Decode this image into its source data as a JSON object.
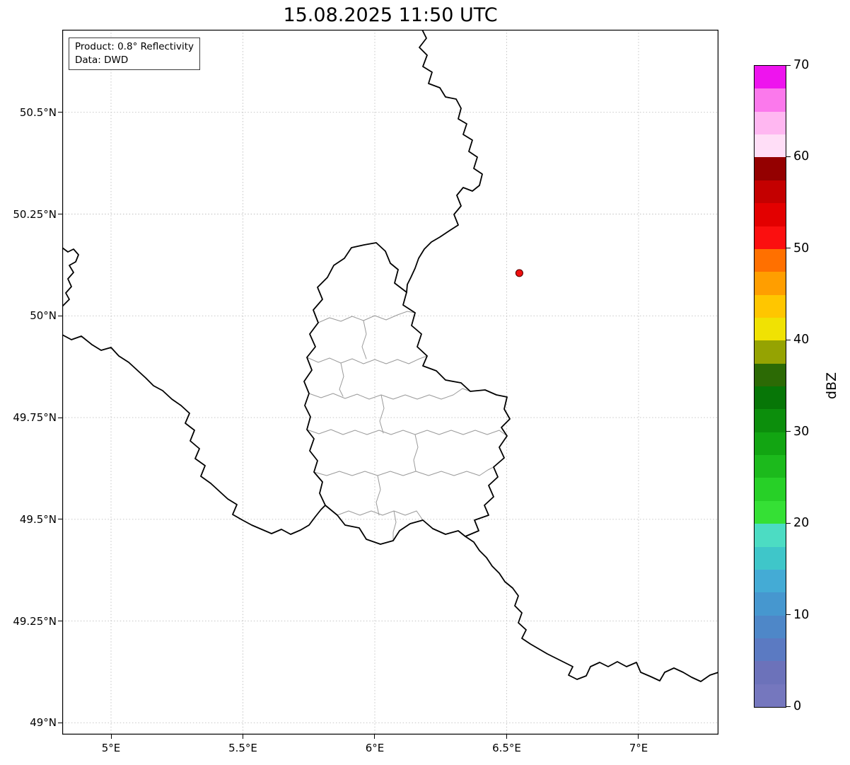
{
  "title": "15.08.2025 11:50 UTC",
  "info_box": {
    "product_line": "Product: 0.8° Reflectivity",
    "data_line": "Data: DWD"
  },
  "axes": {
    "x_ticks": [
      {
        "label": "5°E",
        "lon": 5.0
      },
      {
        "label": "5.5°E",
        "lon": 5.5
      },
      {
        "label": "6°E",
        "lon": 6.0
      },
      {
        "label": "6.5°E",
        "lon": 6.5
      },
      {
        "label": "7°E",
        "lon": 7.0
      }
    ],
    "y_ticks": [
      {
        "label": "49°N",
        "lat": 49.0
      },
      {
        "label": "49.25°N",
        "lat": 49.25
      },
      {
        "label": "49.5°N",
        "lat": 49.5
      },
      {
        "label": "49.75°N",
        "lat": 49.75
      },
      {
        "label": "50°N",
        "lat": 50.0
      },
      {
        "label": "50.25°N",
        "lat": 50.25
      },
      {
        "label": "50.5°N",
        "lat": 50.5
      }
    ]
  },
  "colorbar": {
    "label": "dBZ",
    "min": 0,
    "max": 70,
    "ticks": [
      0,
      10,
      20,
      30,
      40,
      50,
      60,
      70
    ],
    "segments": [
      {
        "from": 0,
        "to": 2.5,
        "color": "#7577be"
      },
      {
        "from": 2.5,
        "to": 5,
        "color": "#6c72ba"
      },
      {
        "from": 5,
        "to": 7.5,
        "color": "#5b7ac2"
      },
      {
        "from": 7.5,
        "to": 10,
        "color": "#4e87c8"
      },
      {
        "from": 10,
        "to": 12.5,
        "color": "#4697cf"
      },
      {
        "from": 12.5,
        "to": 15,
        "color": "#44abd5"
      },
      {
        "from": 15,
        "to": 17.5,
        "color": "#3fc6c9"
      },
      {
        "from": 17.5,
        "to": 20,
        "color": "#4cdcc3"
      },
      {
        "from": 20,
        "to": 22.5,
        "color": "#35e035"
      },
      {
        "from": 22.5,
        "to": 25,
        "color": "#27d027"
      },
      {
        "from": 25,
        "to": 27.5,
        "color": "#1cba1c"
      },
      {
        "from": 27.5,
        "to": 30,
        "color": "#12a512"
      },
      {
        "from": 30,
        "to": 32.5,
        "color": "#0c8e0c"
      },
      {
        "from": 32.5,
        "to": 35,
        "color": "#077607"
      },
      {
        "from": 35,
        "to": 37.5,
        "color": "#2c6a05"
      },
      {
        "from": 37.5,
        "to": 40,
        "color": "#95a302"
      },
      {
        "from": 40,
        "to": 42.5,
        "color": "#f0e203"
      },
      {
        "from": 42.5,
        "to": 45,
        "color": "#ffc600"
      },
      {
        "from": 45,
        "to": 47.5,
        "color": "#ff9e00"
      },
      {
        "from": 47.5,
        "to": 50,
        "color": "#ff7000"
      },
      {
        "from": 50,
        "to": 52.5,
        "color": "#fb0f0f"
      },
      {
        "from": 52.5,
        "to": 55,
        "color": "#e30000"
      },
      {
        "from": 55,
        "to": 57.5,
        "color": "#c40000"
      },
      {
        "from": 57.5,
        "to": 60,
        "color": "#940000"
      },
      {
        "from": 60,
        "to": 62.5,
        "color": "#ffdef7"
      },
      {
        "from": 62.5,
        "to": 65,
        "color": "#ffb7f1"
      },
      {
        "from": 65,
        "to": 67.5,
        "color": "#fb79ec"
      },
      {
        "from": 67.5,
        "to": 70,
        "color": "#ee14ee"
      }
    ]
  },
  "map": {
    "extent": {
      "lon_min": 4.815,
      "lon_max": 7.303,
      "lat_min": 48.971,
      "lat_max": 50.703
    },
    "marker": {
      "name": "radar-site",
      "lon": 6.548,
      "lat": 50.105,
      "fill": "#ef0f0f",
      "edge": "#5a0000",
      "radius": 5
    },
    "country_borders": [
      [
        [
          509,
          0
        ],
        [
          515,
          12
        ],
        [
          505,
          25
        ],
        [
          516,
          36
        ],
        [
          510,
          52
        ],
        [
          523,
          60
        ],
        [
          518,
          76
        ],
        [
          534,
          82
        ],
        [
          542,
          95
        ],
        [
          557,
          98
        ],
        [
          564,
          111
        ],
        [
          560,
          126
        ],
        [
          572,
          133
        ],
        [
          567,
          148
        ],
        [
          580,
          156
        ],
        [
          575,
          172
        ],
        [
          587,
          180
        ],
        [
          582,
          196
        ],
        [
          594,
          204
        ],
        [
          590,
          220
        ],
        [
          580,
          228
        ],
        [
          567,
          223
        ],
        [
          558,
          234
        ],
        [
          564,
          249
        ],
        [
          554,
          261
        ],
        [
          560,
          276
        ],
        [
          546,
          285
        ],
        [
          534,
          293
        ],
        [
          522,
          300
        ],
        [
          512,
          310
        ],
        [
          504,
          323
        ],
        [
          499,
          337
        ],
        [
          493,
          350
        ],
        [
          488,
          360
        ],
        [
          487,
          371
        ]
      ],
      [
        [
          444,
          301
        ],
        [
          457,
          313
        ],
        [
          464,
          330
        ],
        [
          475,
          339
        ],
        [
          470,
          358
        ],
        [
          487,
          371
        ],
        [
          482,
          389
        ],
        [
          499,
          400
        ],
        [
          494,
          418
        ],
        [
          508,
          430
        ],
        [
          502,
          448
        ],
        [
          516,
          461
        ],
        [
          510,
          475
        ],
        [
          529,
          482
        ],
        [
          542,
          495
        ],
        [
          564,
          499
        ],
        [
          577,
          511
        ],
        [
          598,
          509
        ],
        [
          614,
          516
        ],
        [
          629,
          519
        ],
        [
          625,
          536
        ],
        [
          633,
          550
        ],
        [
          621,
          562
        ],
        [
          629,
          574
        ],
        [
          618,
          590
        ],
        [
          625,
          605
        ],
        [
          610,
          618
        ],
        [
          616,
          632
        ],
        [
          603,
          644
        ],
        [
          610,
          660
        ],
        [
          597,
          672
        ],
        [
          603,
          686
        ],
        [
          583,
          693
        ],
        [
          589,
          708
        ],
        [
          570,
          716
        ],
        [
          560,
          708
        ],
        [
          542,
          713
        ],
        [
          524,
          705
        ],
        [
          510,
          693
        ],
        [
          492,
          698
        ],
        [
          477,
          708
        ],
        [
          468,
          722
        ],
        [
          450,
          727
        ],
        [
          430,
          720
        ],
        [
          420,
          704
        ],
        [
          400,
          700
        ],
        [
          389,
          686
        ],
        [
          372,
          672
        ],
        [
          364,
          655
        ],
        [
          368,
          639
        ],
        [
          356,
          625
        ],
        [
          361,
          609
        ],
        [
          350,
          595
        ],
        [
          356,
          578
        ],
        [
          346,
          565
        ],
        [
          351,
          547
        ],
        [
          343,
          531
        ],
        [
          349,
          514
        ],
        [
          342,
          497
        ],
        [
          353,
          481
        ],
        [
          346,
          463
        ],
        [
          358,
          448
        ],
        [
          350,
          430
        ],
        [
          362,
          414
        ],
        [
          355,
          396
        ],
        [
          368,
          381
        ],
        [
          361,
          364
        ],
        [
          375,
          350
        ],
        [
          384,
          333
        ],
        [
          399,
          323
        ],
        [
          409,
          308
        ],
        [
          427,
          304
        ],
        [
          444,
          301
        ]
      ],
      [
        [
          0,
          431
        ],
        [
          13,
          438
        ],
        [
          27,
          433
        ],
        [
          42,
          445
        ],
        [
          55,
          453
        ],
        [
          69,
          449
        ],
        [
          80,
          461
        ],
        [
          94,
          470
        ],
        [
          106,
          481
        ],
        [
          118,
          492
        ],
        [
          129,
          503
        ],
        [
          142,
          510
        ],
        [
          155,
          522
        ],
        [
          168,
          531
        ],
        [
          180,
          542
        ],
        [
          174,
          556
        ],
        [
          187,
          566
        ],
        [
          181,
          581
        ],
        [
          194,
          592
        ],
        [
          188,
          606
        ],
        [
          202,
          616
        ],
        [
          196,
          631
        ],
        [
          210,
          641
        ],
        [
          222,
          652
        ],
        [
          234,
          663
        ],
        [
          247,
          671
        ],
        [
          241,
          685
        ],
        [
          255,
          693
        ],
        [
          268,
          700
        ],
        [
          282,
          706
        ],
        [
          296,
          712
        ],
        [
          310,
          706
        ],
        [
          323,
          713
        ],
        [
          337,
          707
        ],
        [
          349,
          700
        ],
        [
          358,
          688
        ],
        [
          366,
          678
        ],
        [
          372,
          672
        ]
      ],
      [
        [
          570,
          716
        ],
        [
          582,
          724
        ],
        [
          590,
          736
        ],
        [
          600,
          746
        ],
        [
          608,
          758
        ],
        [
          618,
          768
        ],
        [
          626,
          780
        ],
        [
          637,
          789
        ],
        [
          645,
          800
        ],
        [
          640,
          814
        ],
        [
          650,
          824
        ],
        [
          645,
          838
        ],
        [
          656,
          848
        ],
        [
          650,
          860
        ],
        [
          662,
          868
        ],
        [
          674,
          875
        ],
        [
          686,
          882
        ],
        [
          698,
          888
        ],
        [
          710,
          894
        ],
        [
          722,
          900
        ],
        [
          716,
          912
        ],
        [
          728,
          918
        ],
        [
          741,
          913
        ],
        [
          747,
          900
        ],
        [
          760,
          894
        ],
        [
          772,
          900
        ],
        [
          785,
          893
        ],
        [
          798,
          900
        ],
        [
          812,
          894
        ],
        [
          818,
          908
        ],
        [
          832,
          914
        ],
        [
          845,
          920
        ],
        [
          852,
          908
        ],
        [
          865,
          902
        ],
        [
          878,
          908
        ],
        [
          890,
          915
        ],
        [
          903,
          921
        ],
        [
          916,
          912
        ],
        [
          928,
          908
        ]
      ],
      [
        [
          0,
          308
        ],
        [
          8,
          314
        ],
        [
          16,
          310
        ],
        [
          23,
          318
        ],
        [
          19,
          328
        ],
        [
          10,
          333
        ],
        [
          16,
          343
        ],
        [
          8,
          352
        ],
        [
          13,
          363
        ],
        [
          5,
          372
        ],
        [
          10,
          381
        ],
        [
          3,
          388
        ],
        [
          0,
          391
        ]
      ]
    ],
    "district_borders": [
      [
        [
          362,
          414
        ],
        [
          378,
          407
        ],
        [
          394,
          412
        ],
        [
          410,
          405
        ],
        [
          426,
          411
        ],
        [
          442,
          404
        ],
        [
          458,
          410
        ],
        [
          474,
          403
        ],
        [
          488,
          398
        ],
        [
          499,
          400
        ]
      ],
      [
        [
          426,
          411
        ],
        [
          430,
          430
        ],
        [
          424,
          448
        ],
        [
          430,
          465
        ]
      ],
      [
        [
          346,
          463
        ],
        [
          362,
          470
        ],
        [
          378,
          464
        ],
        [
          394,
          471
        ],
        [
          410,
          465
        ],
        [
          426,
          472
        ],
        [
          442,
          466
        ],
        [
          458,
          472
        ],
        [
          474,
          466
        ],
        [
          490,
          472
        ],
        [
          505,
          465
        ],
        [
          516,
          461
        ]
      ],
      [
        [
          394,
          471
        ],
        [
          398,
          490
        ],
        [
          392,
          508
        ],
        [
          397,
          518
        ]
      ],
      [
        [
          349,
          514
        ],
        [
          366,
          520
        ],
        [
          383,
          514
        ],
        [
          400,
          521
        ],
        [
          417,
          515
        ],
        [
          434,
          522
        ],
        [
          451,
          516
        ],
        [
          468,
          522
        ],
        [
          485,
          516
        ],
        [
          502,
          522
        ],
        [
          519,
          516
        ],
        [
          536,
          522
        ],
        [
          553,
          516
        ],
        [
          566,
          507
        ],
        [
          577,
          511
        ]
      ],
      [
        [
          451,
          516
        ],
        [
          455,
          535
        ],
        [
          449,
          553
        ],
        [
          454,
          570
        ]
      ],
      [
        [
          346,
          565
        ],
        [
          363,
          571
        ],
        [
          380,
          565
        ],
        [
          397,
          572
        ],
        [
          414,
          566
        ],
        [
          431,
          572
        ],
        [
          448,
          566
        ],
        [
          465,
          572
        ],
        [
          482,
          566
        ],
        [
          499,
          572
        ],
        [
          516,
          566
        ],
        [
          533,
          572
        ],
        [
          550,
          566
        ],
        [
          567,
          572
        ],
        [
          584,
          566
        ],
        [
          601,
          572
        ],
        [
          618,
          566
        ],
        [
          629,
          574
        ]
      ],
      [
        [
          499,
          572
        ],
        [
          503,
          590
        ],
        [
          497,
          608
        ],
        [
          500,
          624
        ]
      ],
      [
        [
          356,
          625
        ],
        [
          374,
          630
        ],
        [
          392,
          624
        ],
        [
          410,
          630
        ],
        [
          428,
          624
        ],
        [
          446,
          630
        ],
        [
          464,
          624
        ],
        [
          482,
          630
        ],
        [
          500,
          624
        ],
        [
          518,
          630
        ],
        [
          536,
          624
        ],
        [
          554,
          630
        ],
        [
          572,
          624
        ],
        [
          590,
          630
        ],
        [
          602,
          622
        ],
        [
          610,
          618
        ]
      ],
      [
        [
          446,
          630
        ],
        [
          450,
          650
        ],
        [
          444,
          668
        ],
        [
          448,
          686
        ]
      ],
      [
        [
          389,
          686
        ],
        [
          405,
          680
        ],
        [
          421,
          686
        ],
        [
          437,
          680
        ],
        [
          453,
          686
        ],
        [
          469,
          680
        ],
        [
          485,
          686
        ],
        [
          501,
          680
        ],
        [
          510,
          693
        ]
      ],
      [
        [
          469,
          680
        ],
        [
          472,
          696
        ],
        [
          468,
          710
        ],
        [
          468,
          722
        ]
      ]
    ]
  }
}
